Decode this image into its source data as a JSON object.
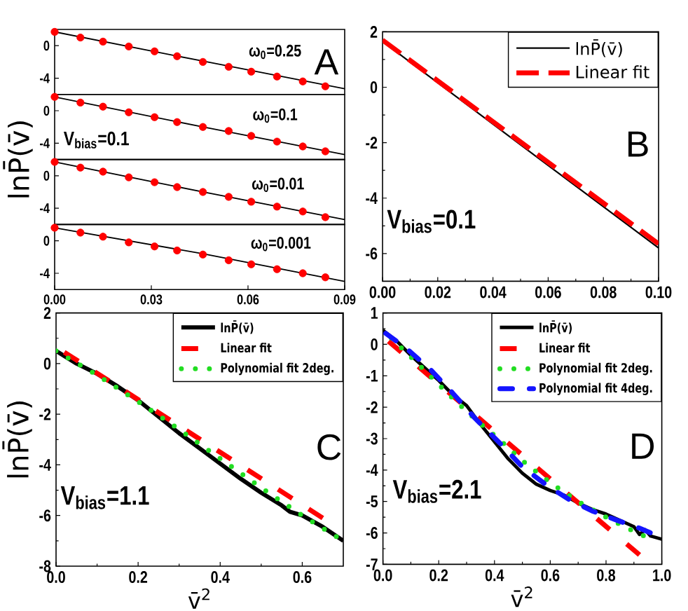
{
  "chart_data": [
    {
      "type": "line",
      "xlim": [
        0,
        0.09
      ],
      "ylim": [
        -6,
        2
      ],
      "yticks": [
        0,
        -4
      ],
      "tick_labels": "y",
      "annotations": [
        "ω$_{0}$=0.25",
        "A"
      ],
      "series": [
        {
          "type": "line",
          "color": "#000000",
          "line_style": "solid",
          "x": [
            0,
            0.046,
            0.09
          ],
          "values": [
            1.7,
            -1.9,
            -5.3
          ]
        },
        {
          "type": "scatter",
          "color": "#ff0000",
          "marker": "circle",
          "x": [
            0,
            0.008,
            0.015,
            0.023,
            0.031,
            0.038,
            0.046,
            0.054,
            0.061,
            0.069,
            0.077,
            0.084
          ],
          "values": [
            1.7,
            1.0,
            0.5,
            -0.1,
            -0.7,
            -1.3,
            -2.0,
            -2.6,
            -3.2,
            -3.8,
            -4.4,
            -5.0
          ]
        }
      ]
    },
    {
      "type": "line",
      "xlim": [
        0,
        0.09
      ],
      "ylim": [
        -6,
        2
      ],
      "yticks": [
        0,
        -4
      ],
      "tick_labels": "y",
      "ylabel": "lnP̄(v̄)",
      "annotations": [
        "ω$_{0}$=0.1",
        "V$_{bias}$=0.1"
      ],
      "series": [
        {
          "type": "line",
          "color": "#000000",
          "line_style": "solid",
          "x": [
            0,
            0.046,
            0.09
          ],
          "values": [
            1.7,
            -2.0,
            -5.4
          ]
        },
        {
          "type": "scatter",
          "color": "#ff0000",
          "marker": "circle",
          "x": [
            0,
            0.008,
            0.015,
            0.023,
            0.031,
            0.038,
            0.046,
            0.054,
            0.061,
            0.069,
            0.077,
            0.084
          ],
          "values": [
            1.7,
            1.0,
            0.5,
            -0.2,
            -0.8,
            -1.4,
            -2.0,
            -2.5,
            -3.1,
            -3.8,
            -4.4,
            -5.0
          ]
        }
      ]
    },
    {
      "type": "line",
      "xlim": [
        0,
        0.09
      ],
      "ylim": [
        -6,
        2
      ],
      "yticks": [
        0,
        -4
      ],
      "tick_labels": "y",
      "annotations": [
        "ω$_{0}$=0.01"
      ],
      "series": [
        {
          "type": "line",
          "color": "#000000",
          "line_style": "solid",
          "x": [
            0,
            0.046,
            0.09
          ],
          "values": [
            1.7,
            -2.0,
            -5.4
          ]
        },
        {
          "type": "scatter",
          "color": "#ff0000",
          "marker": "circle",
          "x": [
            0,
            0.008,
            0.015,
            0.023,
            0.031,
            0.038,
            0.046,
            0.054,
            0.061,
            0.069,
            0.077,
            0.084
          ],
          "values": [
            1.7,
            1.0,
            0.5,
            -0.2,
            -0.8,
            -1.4,
            -2.0,
            -2.6,
            -3.2,
            -3.8,
            -4.4,
            -5.1
          ]
        }
      ]
    },
    {
      "type": "line",
      "xlim": [
        0,
        0.09
      ],
      "ylim": [
        -6,
        2
      ],
      "xticks": [
        {
          "value": 0,
          "label": "0.00"
        },
        {
          "value": 0.03,
          "label": "0.03"
        },
        {
          "value": 0.06,
          "label": "0.06"
        },
        {
          "value": 0.09,
          "label": "0.09"
        }
      ],
      "yticks": [
        0,
        -4
      ],
      "annotations": [
        "ω$_{0}$=0.001"
      ],
      "series": [
        {
          "type": "line",
          "color": "#000000",
          "line_style": "solid",
          "x": [
            0,
            0.046,
            0.09
          ],
          "values": [
            1.6,
            -1.6,
            -5.0
          ]
        },
        {
          "type": "scatter",
          "color": "#ff0000",
          "marker": "circle",
          "x": [
            0,
            0.008,
            0.015,
            0.023,
            0.031,
            0.038,
            0.046,
            0.054,
            0.061,
            0.069,
            0.077,
            0.084
          ],
          "values": [
            1.6,
            1.0,
            0.5,
            -0.2,
            -0.7,
            -1.2,
            -1.7,
            -2.4,
            -2.9,
            -3.5,
            -4.0,
            -4.5
          ]
        }
      ]
    },
    {
      "type": "line",
      "xlim": [
        0,
        0.1
      ],
      "ylim": [
        -7,
        2
      ],
      "xticks": [
        {
          "value": 0,
          "label": "0.00"
        },
        {
          "value": 0.02,
          "label": "0.02"
        },
        {
          "value": 0.04,
          "label": "0.04"
        },
        {
          "value": 0.06,
          "label": "0.06"
        },
        {
          "value": 0.08,
          "label": "0.08"
        },
        {
          "value": 0.1,
          "label": "0.10"
        }
      ],
      "yticks": [
        2,
        0,
        -2,
        -4,
        -6
      ],
      "legend": "top right",
      "annotations": [
        "V$_{bias}$=0.1",
        "B"
      ],
      "series": [
        {
          "name": "lnP̄(v̄)",
          "color": "#000000",
          "line_style": "solid",
          "x": [
            0,
            0.1
          ],
          "values": [
            1.65,
            -5.8
          ]
        },
        {
          "name": "Linear fit",
          "color": "#ff0000",
          "line_style": "dashed",
          "x": [
            0,
            0.1
          ],
          "values": [
            1.7,
            -5.65
          ]
        }
      ]
    },
    {
      "type": "line",
      "xlabel": "v̄$^{2}$",
      "ylabel": "lnP̄(v̄)",
      "xlim": [
        0,
        0.7
      ],
      "ylim": [
        -8,
        2
      ],
      "xticks": [
        {
          "value": 0,
          "label": "0.0"
        },
        {
          "value": 0.2,
          "label": "0.2"
        },
        {
          "value": 0.4,
          "label": "0.4"
        },
        {
          "value": 0.6,
          "label": "0.6"
        }
      ],
      "yticks": [
        2,
        0,
        -2,
        -4,
        -6,
        -8
      ],
      "legend": "top right",
      "annotations": [
        "V$_{bias}$=1.1",
        "C"
      ],
      "series": [
        {
          "name": "lnP̄(v̄)",
          "color": "#000000",
          "line_style": "solid",
          "x": [
            0,
            0.05,
            0.1,
            0.15,
            0.2,
            0.25,
            0.3,
            0.35,
            0.4,
            0.45,
            0.5,
            0.55,
            0.57,
            0.6,
            0.65,
            0.7
          ],
          "values": [
            0.5,
            0.0,
            -0.4,
            -0.9,
            -1.45,
            -2.1,
            -2.75,
            -3.35,
            -3.95,
            -4.55,
            -5.1,
            -5.6,
            -5.85,
            -6.0,
            -6.45,
            -7.0
          ]
        },
        {
          "name": "Linear fit",
          "color": "#ff0000",
          "line_style": "dashed",
          "x": [
            0.02,
            0.65
          ],
          "values": [
            0.45,
            -6.1
          ]
        },
        {
          "name": "Polynomial fit 2deg.",
          "color": "#22dd22",
          "line_style": "dotted",
          "x": [
            0,
            0.1,
            0.2,
            0.3,
            0.4,
            0.5,
            0.6,
            0.7
          ],
          "values": [
            0.5,
            -0.45,
            -1.5,
            -2.6,
            -3.75,
            -4.9,
            -6.0,
            -7.0
          ]
        }
      ]
    },
    {
      "type": "line",
      "xlabel": "v̄$^{2}$",
      "xlim": [
        0,
        1
      ],
      "ylim": [
        -7,
        1
      ],
      "xticks": [
        {
          "value": 0,
          "label": "0.0"
        },
        {
          "value": 0.2,
          "label": "0.2"
        },
        {
          "value": 0.4,
          "label": "0.4"
        },
        {
          "value": 0.6,
          "label": "0.6"
        },
        {
          "value": 0.8,
          "label": "0.8"
        },
        {
          "value": 1,
          "label": "1.0"
        }
      ],
      "yticks": [
        1,
        0,
        -1,
        -2,
        -3,
        -4,
        -5,
        -6,
        -7
      ],
      "legend": "top right",
      "annotations": [
        "V$_{bias}$=2.1",
        "D"
      ],
      "series": [
        {
          "name": "lnP̄(v̄)",
          "color": "#000000",
          "line_style": "solid",
          "x": [
            0,
            0.05,
            0.1,
            0.15,
            0.2,
            0.25,
            0.3,
            0.35,
            0.4,
            0.45,
            0.5,
            0.55,
            0.6,
            0.65,
            0.7,
            0.75,
            0.8,
            0.85,
            0.9,
            0.92,
            0.94,
            0.96,
            1.0
          ],
          "values": [
            0.45,
            0.1,
            -0.35,
            -0.75,
            -1.15,
            -1.6,
            -1.95,
            -2.55,
            -3.1,
            -3.65,
            -4.1,
            -4.45,
            -4.65,
            -4.8,
            -5.05,
            -5.25,
            -5.4,
            -5.6,
            -5.8,
            -6.05,
            -5.9,
            -6.1,
            -6.2
          ]
        },
        {
          "name": "Linear fit",
          "color": "#ff0000",
          "line_style": "dashed",
          "x": [
            0.02,
            0.92
          ],
          "values": [
            0.1,
            -6.7
          ]
        },
        {
          "name": "Polynomial fit 2deg.",
          "color": "#22dd22",
          "line_style": "dotted",
          "x": [
            0.03,
            0.1,
            0.18,
            0.26,
            0.34,
            0.42,
            0.5,
            0.6,
            0.7,
            0.8,
            0.9,
            0.95
          ],
          "values": [
            0.2,
            -0.4,
            -1.1,
            -1.8,
            -2.45,
            -3.05,
            -3.7,
            -4.4,
            -5.0,
            -5.5,
            -5.95,
            -6.15
          ]
        },
        {
          "name": "Polynomial fit 4deg.",
          "color": "#1414ff",
          "line_style": "dashdot",
          "x": [
            0.01,
            0.08,
            0.17,
            0.25,
            0.33,
            0.42,
            0.5,
            0.59,
            0.67,
            0.75,
            0.84,
            0.92,
            1.0
          ],
          "values": [
            0.35,
            -0.1,
            -0.8,
            -1.55,
            -2.35,
            -3.15,
            -3.9,
            -4.5,
            -4.95,
            -5.3,
            -5.6,
            -5.85,
            -6.15
          ]
        }
      ]
    }
  ]
}
